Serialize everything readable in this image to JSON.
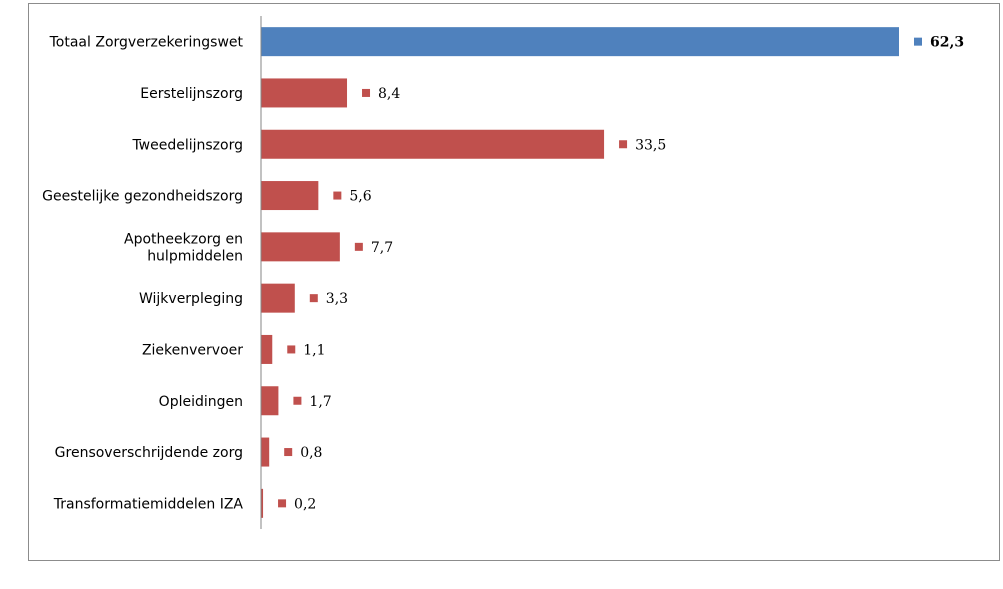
{
  "chart_data": {
    "type": "bar",
    "orientation": "horizontal",
    "categories": [
      [
        "Totaal Zorgverzekeringswet"
      ],
      [
        "Eerstelijnszorg"
      ],
      [
        "Tweedelijnszorg"
      ],
      [
        "Geestelijke gezondheidszorg"
      ],
      [
        "Apotheekzorg en",
        "hulpmiddelen"
      ],
      [
        "Wijkverpleging"
      ],
      [
        "Ziekenvervoer"
      ],
      [
        "Opleidingen"
      ],
      [
        "Grensoverschrijdende zorg"
      ],
      [
        "Transformatiemiddelen IZA"
      ]
    ],
    "values": [
      62.3,
      8.4,
      33.5,
      5.6,
      7.7,
      3.3,
      1.1,
      1.7,
      0.8,
      0.2
    ],
    "value_labels": [
      "62,3",
      "8,4",
      "33,5",
      "5,6",
      "7,7",
      "3,3",
      "1,1",
      "1,7",
      "0,8",
      "0,2"
    ],
    "bold_labels": [
      true,
      false,
      false,
      false,
      false,
      false,
      false,
      false,
      false,
      false
    ],
    "colors": [
      "#4f81bd",
      "#c0504d",
      "#c0504d",
      "#c0504d",
      "#c0504d",
      "#c0504d",
      "#c0504d",
      "#c0504d",
      "#c0504d",
      "#c0504d"
    ],
    "xlim": [
      0,
      62.3
    ],
    "grid": false,
    "legend": "none"
  }
}
